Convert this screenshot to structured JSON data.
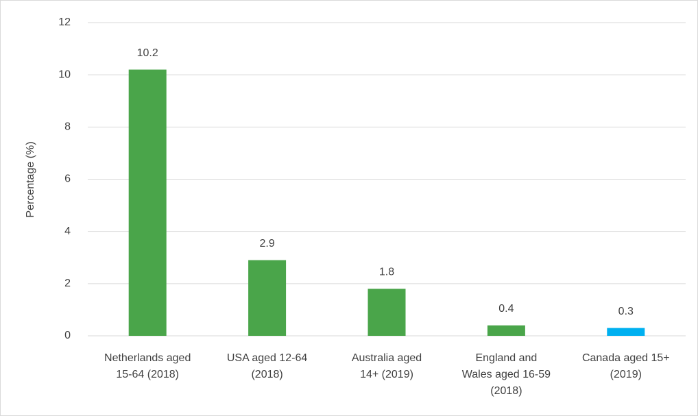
{
  "chart_data": {
    "type": "bar",
    "y_label": "Percentage (%)",
    "categories": [
      "Netherlands aged 15-64 (2018)",
      "USA aged 12-64 (2018)",
      "Australia aged 14+ (2019)",
      "England and Wales aged 16-59 (2018)",
      "Canada aged 15+ (2019)"
    ],
    "values": [
      10.2,
      2.9,
      1.8,
      0.4,
      0.3
    ],
    "colors": [
      "#4aa54a",
      "#4aa54a",
      "#4aa54a",
      "#4aa54a",
      "#00b0f0"
    ],
    "ylim": [
      0,
      12
    ],
    "yticks": [
      0,
      2,
      4,
      6,
      8,
      10,
      12
    ],
    "grid": true
  }
}
